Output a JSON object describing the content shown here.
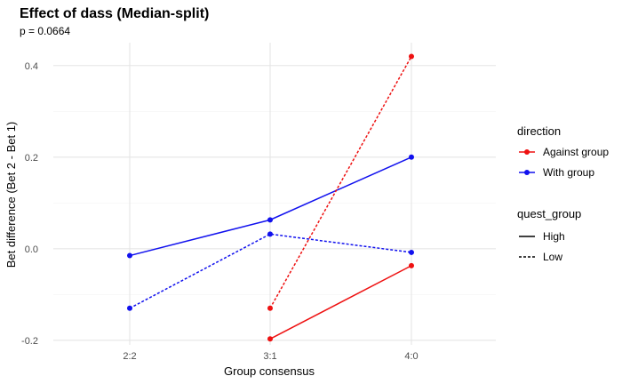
{
  "chart_data": {
    "type": "line",
    "title": "Effect of dass (Median-split)",
    "subtitle": "p = 0.0664",
    "xlabel": "Group consensus",
    "ylabel": "Bet difference (Bet 2 - Bet 1)",
    "categories": [
      "2:2",
      "3:1",
      "4:0"
    ],
    "ylim": [
      -0.21,
      0.45
    ],
    "yticks": [
      -0.2,
      0.0,
      0.2,
      0.4
    ],
    "ytick_labels": [
      "-0.2",
      "0.0",
      "0.2",
      "0.4"
    ],
    "grid": true,
    "legend_position": "right",
    "colors": {
      "Against group": "#ee1111",
      "With group": "#1111ee"
    },
    "legends": {
      "direction": {
        "title": "direction",
        "items": [
          "Against group",
          "With group"
        ]
      },
      "quest_group": {
        "title": "quest_group",
        "items": [
          "High",
          "Low"
        ]
      }
    },
    "series": [
      {
        "direction": "With group",
        "quest_group": "High",
        "x": [
          "2:2",
          "3:1",
          "4:0"
        ],
        "values": [
          -0.015,
          0.063,
          0.2
        ]
      },
      {
        "direction": "With group",
        "quest_group": "Low",
        "x": [
          "2:2",
          "3:1",
          "4:0"
        ],
        "values": [
          -0.13,
          0.032,
          -0.008
        ]
      },
      {
        "direction": "Against group",
        "quest_group": "High",
        "x": [
          "3:1",
          "4:0"
        ],
        "values": [
          -0.197,
          -0.037
        ]
      },
      {
        "direction": "Against group",
        "quest_group": "Low",
        "x": [
          "3:1",
          "4:0"
        ],
        "values": [
          -0.13,
          0.42
        ]
      }
    ]
  }
}
